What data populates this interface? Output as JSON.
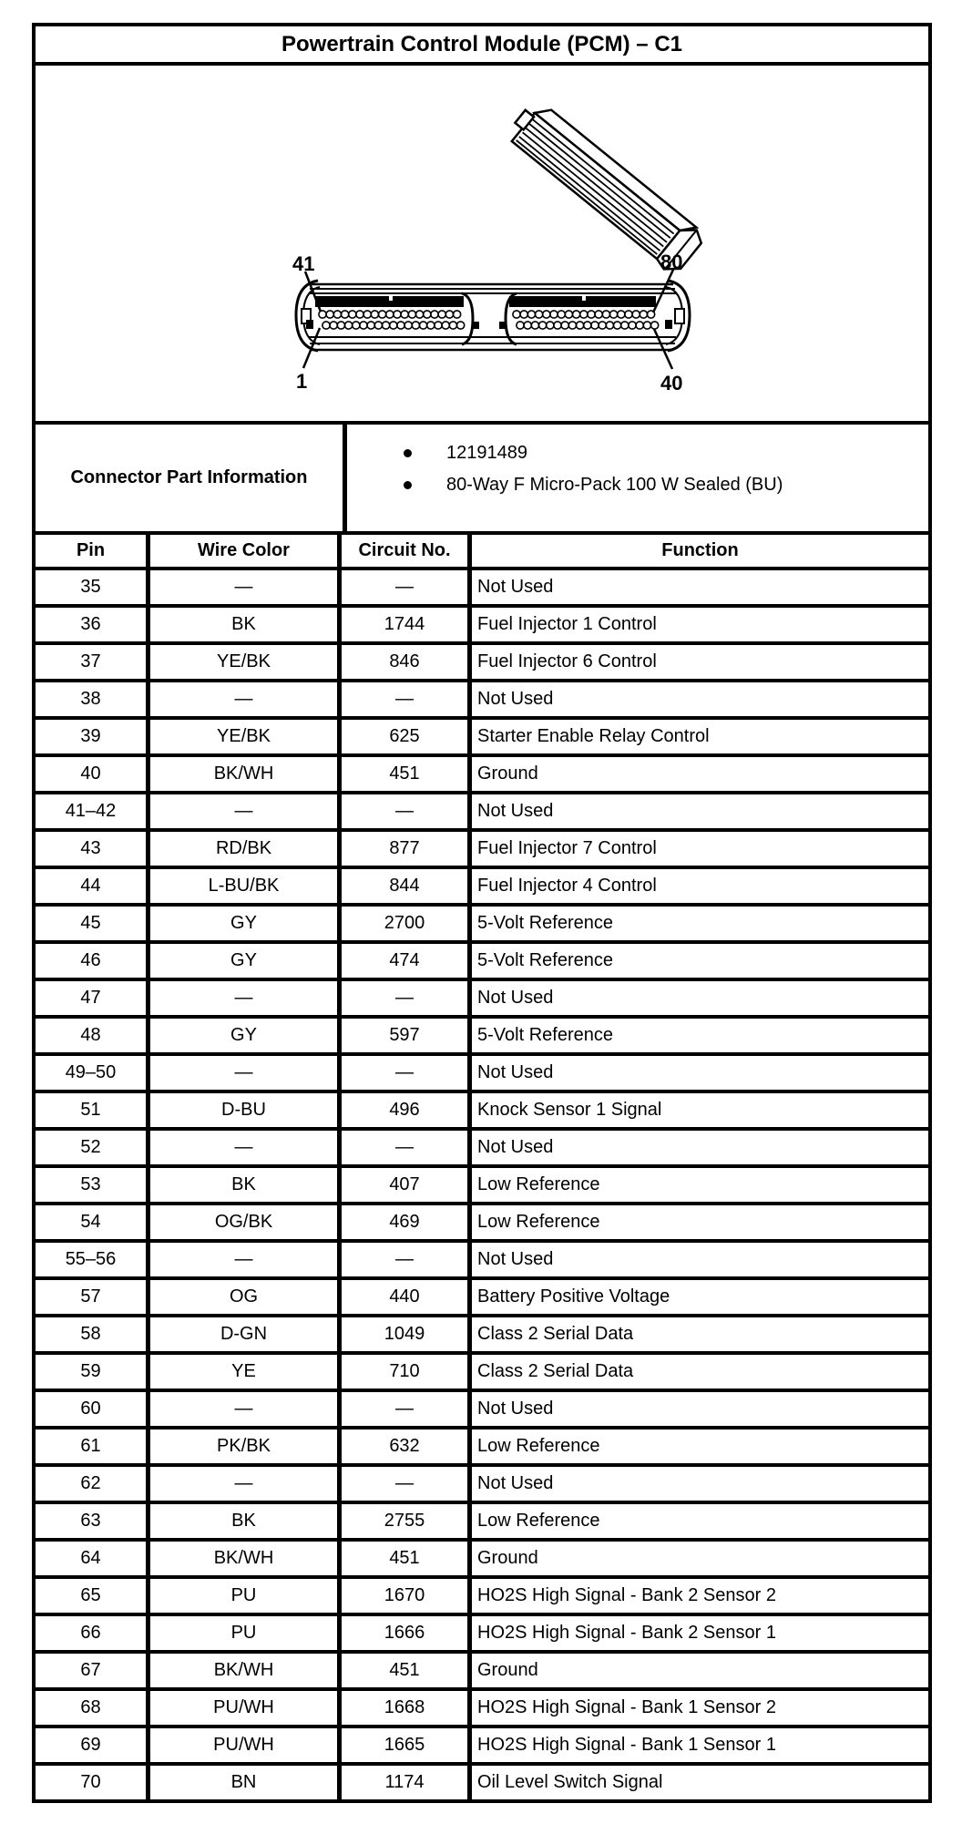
{
  "title": "Powertrain Control Module (PCM) – C1",
  "connector": {
    "labels": {
      "top_left": "41",
      "top_right": "80",
      "bottom_left": "1",
      "bottom_right": "40"
    }
  },
  "part_info": {
    "label": "Connector Part Information",
    "bullets": [
      "12191489",
      "80-Way F Micro-Pack 100 W Sealed (BU)"
    ]
  },
  "table": {
    "headers": [
      "Pin",
      "Wire Color",
      "Circuit No.",
      "Function"
    ],
    "rows": [
      {
        "pin": "35",
        "wire_color": "—",
        "circuit": "—",
        "function": "Not Used"
      },
      {
        "pin": "36",
        "wire_color": "BK",
        "circuit": "1744",
        "function": "Fuel Injector 1 Control"
      },
      {
        "pin": "37",
        "wire_color": "YE/BK",
        "circuit": "846",
        "function": "Fuel Injector 6 Control"
      },
      {
        "pin": "38",
        "wire_color": "—",
        "circuit": "—",
        "function": "Not Used"
      },
      {
        "pin": "39",
        "wire_color": "YE/BK",
        "circuit": "625",
        "function": "Starter Enable Relay Control"
      },
      {
        "pin": "40",
        "wire_color": "BK/WH",
        "circuit": "451",
        "function": "Ground"
      },
      {
        "pin": "41–42",
        "wire_color": "—",
        "circuit": "—",
        "function": "Not Used"
      },
      {
        "pin": "43",
        "wire_color": "RD/BK",
        "circuit": "877",
        "function": "Fuel Injector 7 Control"
      },
      {
        "pin": "44",
        "wire_color": "L-BU/BK",
        "circuit": "844",
        "function": "Fuel Injector 4 Control"
      },
      {
        "pin": "45",
        "wire_color": "GY",
        "circuit": "2700",
        "function": "5-Volt Reference"
      },
      {
        "pin": "46",
        "wire_color": "GY",
        "circuit": "474",
        "function": "5-Volt Reference"
      },
      {
        "pin": "47",
        "wire_color": "—",
        "circuit": "—",
        "function": "Not Used"
      },
      {
        "pin": "48",
        "wire_color": "GY",
        "circuit": "597",
        "function": "5-Volt Reference"
      },
      {
        "pin": "49–50",
        "wire_color": "—",
        "circuit": "—",
        "function": "Not Used"
      },
      {
        "pin": "51",
        "wire_color": "D-BU",
        "circuit": "496",
        "function": "Knock Sensor 1 Signal"
      },
      {
        "pin": "52",
        "wire_color": "—",
        "circuit": "—",
        "function": "Not Used"
      },
      {
        "pin": "53",
        "wire_color": "BK",
        "circuit": "407",
        "function": "Low Reference"
      },
      {
        "pin": "54",
        "wire_color": "OG/BK",
        "circuit": "469",
        "function": "Low Reference"
      },
      {
        "pin": "55–56",
        "wire_color": "—",
        "circuit": "—",
        "function": "Not Used"
      },
      {
        "pin": "57",
        "wire_color": "OG",
        "circuit": "440",
        "function": "Battery Positive Voltage"
      },
      {
        "pin": "58",
        "wire_color": "D-GN",
        "circuit": "1049",
        "function": "Class 2 Serial Data"
      },
      {
        "pin": "59",
        "wire_color": "YE",
        "circuit": "710",
        "function": "Class 2 Serial Data"
      },
      {
        "pin": "60",
        "wire_color": "—",
        "circuit": "—",
        "function": "Not Used"
      },
      {
        "pin": "61",
        "wire_color": "PK/BK",
        "circuit": "632",
        "function": "Low Reference"
      },
      {
        "pin": "62",
        "wire_color": "—",
        "circuit": "—",
        "function": "Not Used"
      },
      {
        "pin": "63",
        "wire_color": "BK",
        "circuit": "2755",
        "function": "Low Reference"
      },
      {
        "pin": "64",
        "wire_color": "BK/WH",
        "circuit": "451",
        "function": "Ground"
      },
      {
        "pin": "65",
        "wire_color": "PU",
        "circuit": "1670",
        "function": "HO2S High Signal - Bank 2 Sensor 2"
      },
      {
        "pin": "66",
        "wire_color": "PU",
        "circuit": "1666",
        "function": "HO2S High Signal - Bank 2 Sensor 1"
      },
      {
        "pin": "67",
        "wire_color": "BK/WH",
        "circuit": "451",
        "function": "Ground"
      },
      {
        "pin": "68",
        "wire_color": "PU/WH",
        "circuit": "1668",
        "function": "HO2S High Signal - Bank 1 Sensor 2"
      },
      {
        "pin": "69",
        "wire_color": "PU/WH",
        "circuit": "1665",
        "function": "HO2S High Signal - Bank 1 Sensor 1"
      },
      {
        "pin": "70",
        "wire_color": "BN",
        "circuit": "1174",
        "function": "Oil Level Switch Signal"
      }
    ]
  }
}
